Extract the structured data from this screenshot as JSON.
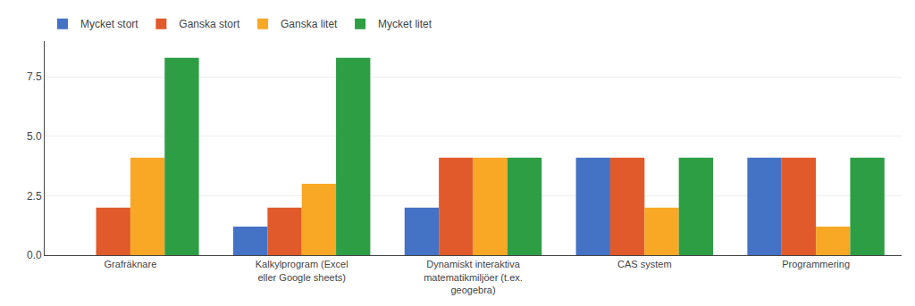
{
  "chart_data": {
    "type": "bar",
    "categories": [
      "Grafräknare",
      "Kalkylprogram (Excel\neller Google sheets)",
      "Dynamiskt interaktiva\nmatematikmiljöer (t.ex.\ngeogebra)",
      "CAS system",
      "Programmering"
    ],
    "series": [
      {
        "name": "Mycket stort",
        "color": "#4472C4",
        "values": [
          0,
          1.2,
          2.0,
          4.1,
          4.1
        ]
      },
      {
        "name": "Ganska stort",
        "color": "#E05A2B",
        "values": [
          2.0,
          2.0,
          4.1,
          4.1,
          4.1
        ]
      },
      {
        "name": "Ganska litet",
        "color": "#F9A825",
        "values": [
          4.1,
          3.0,
          4.1,
          2.0,
          1.2
        ]
      },
      {
        "name": "Mycket litet",
        "color": "#2E9E45",
        "values": [
          8.3,
          8.3,
          4.1,
          4.1,
          4.1
        ]
      }
    ],
    "ylim": [
      0,
      9.0
    ],
    "yticks": [
      {
        "value": 0,
        "label": "0.0"
      },
      2.5,
      {
        "value": 5,
        "label": "5.0"
      },
      7.5
    ],
    "grid": true,
    "legend": "upper left"
  }
}
